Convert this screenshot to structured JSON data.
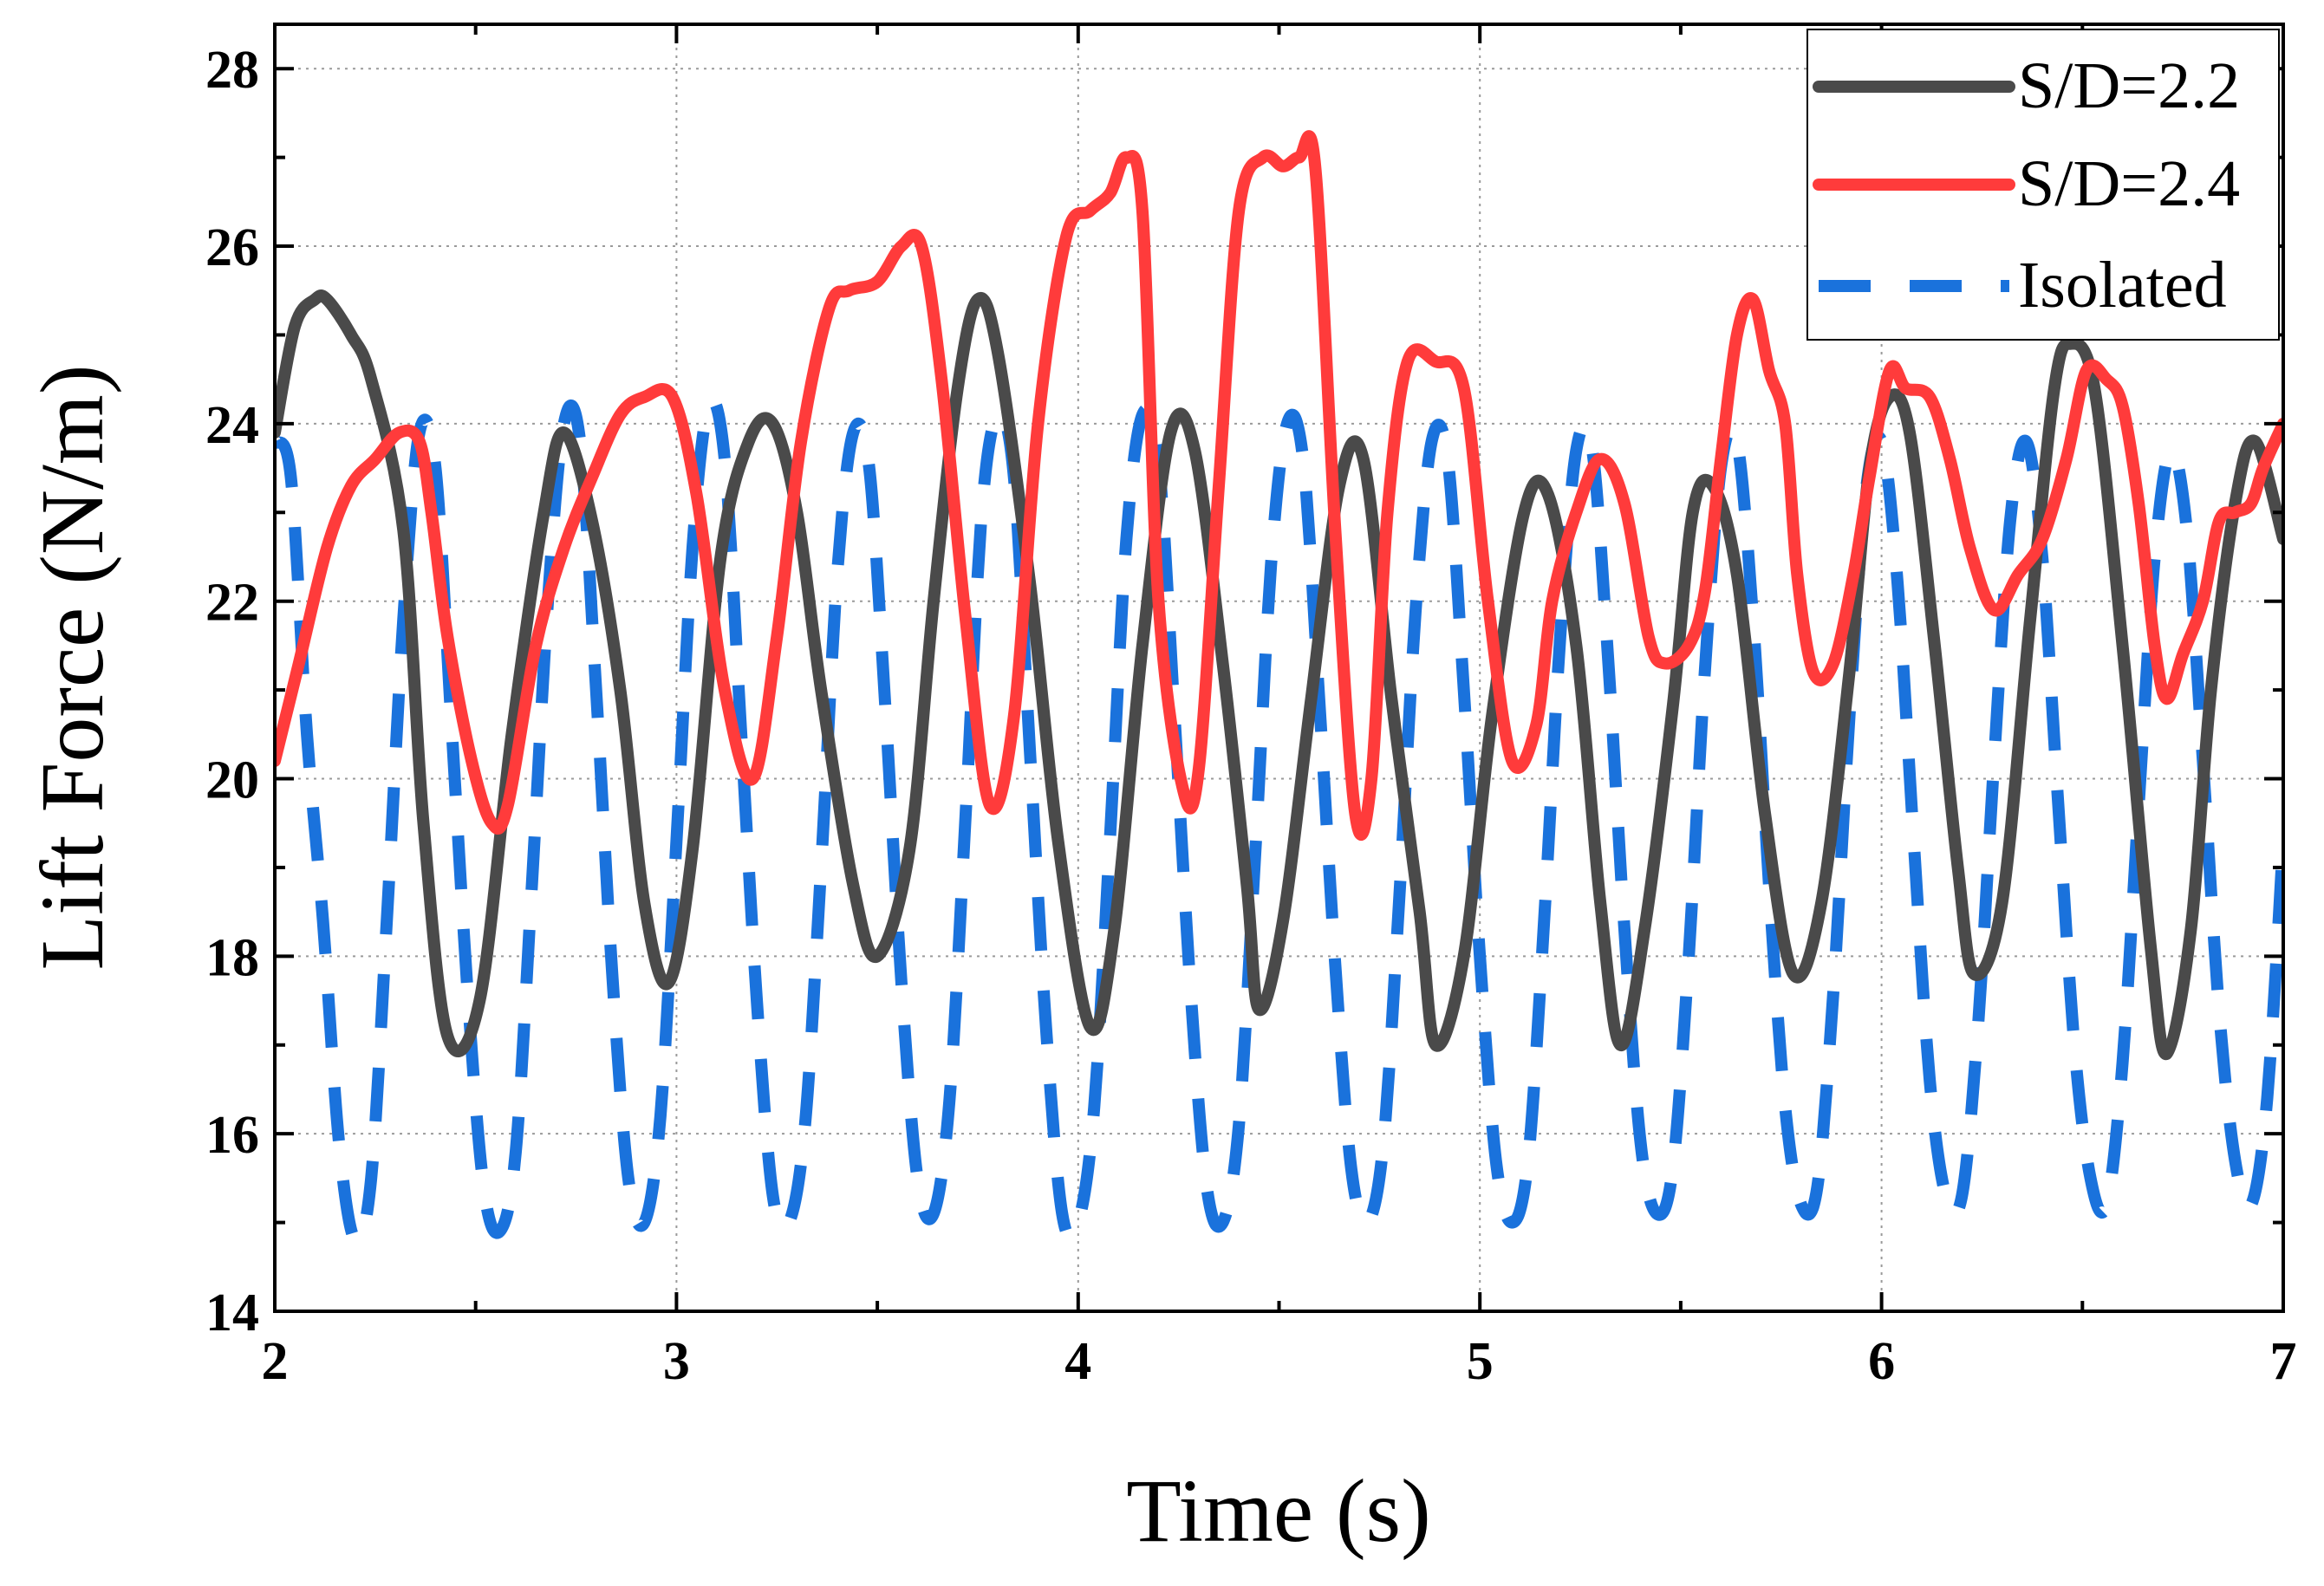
{
  "chart_data": {
    "type": "line",
    "title": "",
    "xlabel": "Time (s)",
    "ylabel": "Lift Force (N/m)",
    "xlim": [
      2,
      7
    ],
    "ylim": [
      14,
      28.5
    ],
    "xticks": [
      2,
      3,
      4,
      5,
      6,
      7
    ],
    "yticks": [
      14,
      16,
      18,
      20,
      22,
      24,
      26,
      28
    ],
    "grid": true,
    "legend_position": "top-right",
    "series": [
      {
        "name": "S/D=2.2",
        "color": "#4a4a4a",
        "style": "solid",
        "x": [
          2.0,
          2.05,
          2.1,
          2.13,
          2.19,
          2.24,
          2.32,
          2.37,
          2.43,
          2.51,
          2.59,
          2.67,
          2.72,
          2.79,
          2.86,
          2.92,
          2.98,
          3.04,
          3.11,
          3.18,
          3.24,
          3.3,
          3.36,
          3.44,
          3.5,
          3.58,
          3.64,
          3.7,
          3.75,
          3.8,
          3.88,
          3.95,
          4.03,
          4.09,
          4.16,
          4.23,
          4.29,
          4.36,
          4.42,
          4.45,
          4.51,
          4.58,
          4.65,
          4.71,
          4.78,
          4.85,
          4.89,
          4.96,
          5.03,
          5.11,
          5.17,
          5.24,
          5.3,
          5.35,
          5.41,
          5.48,
          5.53,
          5.58,
          5.64,
          5.71,
          5.78,
          5.85,
          5.92,
          5.97,
          6.02,
          6.07,
          6.13,
          6.19,
          6.23,
          6.3,
          6.37,
          6.43,
          6.47,
          6.53,
          6.6,
          6.67,
          6.71,
          6.77,
          6.82,
          6.88,
          6.93,
          7.0
        ],
        "values": [
          23.9,
          25.1,
          25.4,
          25.4,
          25.0,
          24.5,
          22.8,
          19.5,
          17.1,
          17.5,
          20.5,
          23.0,
          23.9,
          22.9,
          21.0,
          18.6,
          17.7,
          19.2,
          22.5,
          23.8,
          24.0,
          23.0,
          21.0,
          18.8,
          18.0,
          19.2,
          22.0,
          24.4,
          25.4,
          24.8,
          22.2,
          19.3,
          17.2,
          18.3,
          21.5,
          23.9,
          23.7,
          21.3,
          18.8,
          17.4,
          18.4,
          20.9,
          23.3,
          23.6,
          20.9,
          18.5,
          17.0,
          18.0,
          20.7,
          23.0,
          23.2,
          21.5,
          18.6,
          17.0,
          18.3,
          20.8,
          23.0,
          23.3,
          22.3,
          19.6,
          17.8,
          18.6,
          21.2,
          23.5,
          24.3,
          23.9,
          21.6,
          19.0,
          17.8,
          18.6,
          21.8,
          24.4,
          24.9,
          24.4,
          21.5,
          18.1,
          16.9,
          18.3,
          21.0,
          23.1,
          23.8,
          22.7
        ]
      },
      {
        "name": "S/D=2.4",
        "color": "#ff3b3b",
        "style": "solid",
        "x": [
          2.0,
          2.06,
          2.13,
          2.19,
          2.25,
          2.31,
          2.36,
          2.39,
          2.43,
          2.49,
          2.54,
          2.58,
          2.65,
          2.72,
          2.79,
          2.86,
          2.92,
          2.99,
          3.05,
          3.12,
          3.19,
          3.25,
          3.31,
          3.38,
          3.43,
          3.5,
          3.56,
          3.61,
          3.66,
          3.72,
          3.78,
          3.84,
          3.9,
          3.97,
          4.03,
          4.08,
          4.12,
          4.16,
          4.2,
          4.26,
          4.3,
          4.35,
          4.4,
          4.46,
          4.51,
          4.55,
          4.59,
          4.64,
          4.69,
          4.73,
          4.77,
          4.82,
          4.89,
          4.96,
          5.02,
          5.08,
          5.14,
          5.18,
          5.24,
          5.3,
          5.36,
          5.42,
          5.46,
          5.52,
          5.56,
          5.6,
          5.64,
          5.68,
          5.72,
          5.76,
          5.79,
          5.83,
          5.88,
          5.93,
          5.97,
          6.02,
          6.06,
          6.12,
          6.17,
          6.22,
          6.28,
          6.34,
          6.4,
          6.46,
          6.51,
          6.56,
          6.6,
          6.64,
          6.68,
          6.71,
          6.75,
          6.8,
          6.84,
          6.88,
          6.92,
          6.95,
          7.0
        ],
        "values": [
          20.2,
          21.3,
          22.6,
          23.3,
          23.6,
          23.9,
          23.8,
          23.0,
          21.6,
          20.2,
          19.5,
          19.7,
          21.5,
          22.6,
          23.4,
          24.1,
          24.3,
          24.3,
          23.2,
          21.0,
          20.0,
          21.6,
          23.8,
          25.3,
          25.5,
          25.6,
          26.0,
          26.0,
          24.5,
          21.8,
          19.7,
          20.7,
          24.0,
          26.1,
          26.4,
          26.6,
          27.0,
          26.4,
          22.0,
          19.9,
          20.1,
          23.3,
          26.4,
          27.0,
          26.9,
          27.0,
          26.9,
          22.8,
          19.6,
          20.0,
          23.0,
          24.7,
          24.7,
          24.4,
          22.0,
          20.2,
          20.6,
          22.0,
          23.0,
          23.6,
          23.1,
          21.6,
          21.3,
          21.5,
          22.1,
          23.6,
          25.0,
          25.4,
          24.6,
          24.0,
          22.3,
          21.2,
          21.3,
          22.3,
          23.4,
          24.6,
          24.4,
          24.3,
          23.6,
          22.6,
          21.9,
          22.3,
          22.7,
          23.6,
          24.6,
          24.5,
          24.2,
          23.1,
          21.5,
          20.9,
          21.4,
          22.0,
          22.9,
          23.0,
          23.1,
          23.5,
          24.0
        ]
      },
      {
        "name": "Isolated",
        "color": "#1a72dc",
        "style": "dashed",
        "x": [
          2.0,
          2.04,
          2.08,
          2.12,
          2.16,
          2.2,
          2.24,
          2.28,
          2.32,
          2.36,
          2.4,
          2.44,
          2.48,
          2.52,
          2.56,
          2.6,
          2.64,
          2.68,
          2.72,
          2.76,
          2.8,
          2.84,
          2.88,
          2.92,
          2.96,
          3.0,
          3.04,
          3.08,
          3.12,
          3.16,
          3.2,
          3.24,
          3.28,
          3.32,
          3.36,
          3.4,
          3.44,
          3.48,
          3.52,
          3.56,
          3.6,
          3.64,
          3.68,
          3.72,
          3.76,
          3.8,
          3.84,
          3.88,
          3.92,
          3.96,
          4.0,
          4.04,
          4.08,
          4.12,
          4.16,
          4.2,
          4.24,
          4.28,
          4.32,
          4.36,
          4.4,
          4.44,
          4.48,
          4.52,
          4.56,
          4.6,
          4.64,
          4.68,
          4.72,
          4.76,
          4.8,
          4.84,
          4.88,
          4.92,
          4.96,
          5.0,
          5.04,
          5.08,
          5.12,
          5.16,
          5.2,
          5.24,
          5.28,
          5.32,
          5.36,
          5.4,
          5.44,
          5.48,
          5.52,
          5.56,
          5.6,
          5.64,
          5.68,
          5.72,
          5.76,
          5.8,
          5.84,
          5.88,
          5.92,
          5.96,
          6.0,
          6.04,
          6.08,
          6.12,
          6.16,
          6.2,
          6.24,
          6.28,
          6.32,
          6.36,
          6.4,
          6.44,
          6.48,
          6.52,
          6.56,
          6.6,
          6.64,
          6.68,
          6.72,
          6.76,
          6.8,
          6.84,
          6.88,
          6.92,
          6.96,
          7.0
        ],
        "values": [
          23.8,
          23.4,
          20.5,
          18.4,
          15.9,
          14.8,
          15.5,
          18.5,
          21.8,
          23.9,
          23.5,
          20.6,
          17.6,
          15.4,
          14.9,
          15.8,
          18.8,
          22.0,
          24.0,
          23.8,
          21.0,
          17.8,
          15.5,
          15.0,
          16.2,
          19.3,
          22.6,
          24.2,
          23.6,
          20.6,
          17.5,
          15.3,
          15.0,
          16.1,
          19.0,
          22.3,
          23.9,
          23.5,
          20.8,
          17.7,
          15.5,
          15.1,
          16.4,
          19.6,
          23.0,
          24.1,
          23.4,
          20.3,
          17.2,
          15.1,
          15.0,
          16.3,
          19.4,
          22.7,
          24.1,
          23.6,
          20.7,
          17.6,
          15.4,
          15.0,
          16.1,
          19.1,
          22.4,
          24.0,
          23.6,
          20.9,
          17.9,
          15.6,
          15.0,
          15.9,
          18.7,
          21.9,
          23.8,
          23.6,
          21.0,
          18.0,
          15.7,
          15.0,
          15.7,
          18.4,
          21.6,
          23.7,
          23.7,
          21.3,
          18.3,
          15.9,
          15.1,
          15.6,
          18.0,
          21.2,
          23.5,
          23.8,
          21.8,
          18.8,
          16.3,
          15.2,
          15.4,
          17.6,
          20.7,
          23.2,
          23.8,
          22.2,
          19.3,
          16.6,
          15.3,
          15.3,
          17.2,
          20.2,
          22.9,
          23.8,
          22.5,
          19.7,
          17.0,
          15.5,
          15.2,
          16.8,
          19.7,
          22.5,
          23.7,
          22.8,
          20.2,
          17.4,
          15.7,
          15.2,
          16.4,
          19.3
        ]
      }
    ]
  }
}
